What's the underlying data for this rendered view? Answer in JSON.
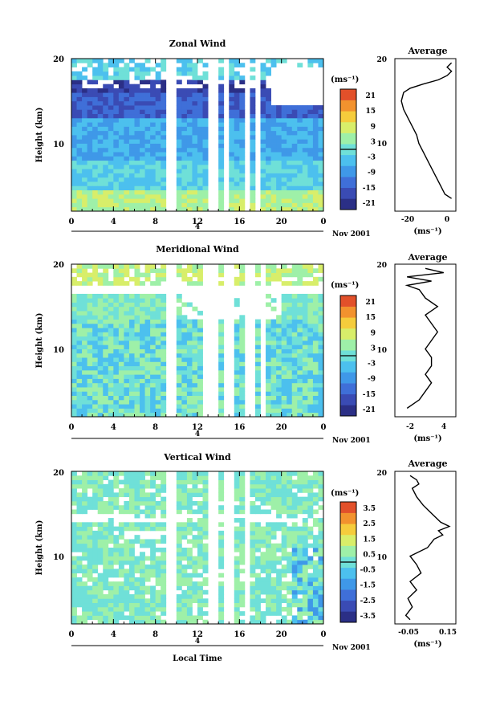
{
  "chart_data": [
    {
      "type": "heatmap",
      "title": "Zonal Wind",
      "ylabel": "Height (km)",
      "ylim": [
        2,
        20
      ],
      "yticks": [
        "20",
        "10"
      ],
      "xlim": [
        0,
        24
      ],
      "xticks": [
        "0",
        "4",
        "8",
        "12",
        "16",
        "20",
        "0"
      ],
      "date_label": "Nov 2001",
      "day_marker": "4",
      "colorbar_unit": "(ms⁻¹)",
      "colorbar_ticks": [
        "21",
        "15",
        "9",
        "3",
        "-3",
        "-9",
        "-15",
        "-21"
      ],
      "data_gaps_local_time": [
        [
          9.2,
          9.9
        ],
        [
          12.9,
          14.1
        ],
        [
          14.6,
          15.2
        ],
        [
          16.6,
          17.0
        ],
        [
          17.6,
          18.0
        ]
      ],
      "average": {
        "title": "Average",
        "xlabel": "(ms⁻¹)",
        "xticks": [
          "-20",
          "0"
        ],
        "xlim": [
          -25,
          3
        ],
        "yticks": [
          "20",
          "10"
        ],
        "profile": {
          "height": [
            3.5,
            4,
            5,
            6,
            7,
            8,
            9,
            10,
            11,
            12,
            13,
            14,
            15,
            16,
            16.5,
            17,
            17.5,
            18,
            18.5,
            19,
            19.5
          ],
          "value": [
            1,
            -2,
            -4,
            -6,
            -8,
            -10,
            -12,
            -14,
            -15,
            -17,
            -19,
            -21,
            -22,
            -21,
            -18,
            -12,
            -5,
            -1,
            1,
            -1,
            1
          ]
        }
      }
    },
    {
      "type": "heatmap",
      "title": "Meridional Wind",
      "ylabel": "Height (km)",
      "ylim": [
        2,
        20
      ],
      "yticks": [
        "20",
        "10"
      ],
      "xlim": [
        0,
        24
      ],
      "xticks": [
        "0",
        "4",
        "8",
        "12",
        "16",
        "20",
        "0"
      ],
      "date_label": "Nov 2001",
      "day_marker": "4",
      "colorbar_unit": "(ms⁻¹)",
      "colorbar_ticks": [
        "21",
        "15",
        "9",
        "3",
        "-3",
        "-9",
        "-15",
        "-21"
      ],
      "data_gaps_local_time": [
        [
          9.0,
          9.9
        ],
        [
          12.4,
          14.0
        ],
        [
          14.5,
          15.6
        ],
        [
          16.6,
          17.5
        ],
        [
          17.9,
          18.3
        ]
      ],
      "average": {
        "title": "Average",
        "xlabel": "(ms⁻¹)",
        "xticks": [
          "-2",
          "4"
        ],
        "xlim": [
          -4,
          6
        ],
        "yticks": [
          "20",
          "10"
        ],
        "profile": {
          "height": [
            3,
            4,
            5,
            6,
            7,
            8,
            9,
            10,
            11,
            12,
            13,
            14,
            15,
            16,
            17,
            17.5,
            18,
            18.5,
            19,
            19.5
          ],
          "value": [
            -2,
            0,
            1,
            2,
            1,
            2,
            2,
            1,
            2,
            3,
            2,
            1,
            3,
            1,
            0,
            -2,
            2,
            -2,
            4,
            1
          ]
        }
      }
    },
    {
      "type": "heatmap",
      "title": "Vertical Wind",
      "ylabel": "Height (km)",
      "xlabel": "Local Time",
      "ylim": [
        2,
        20
      ],
      "yticks": [
        "20",
        "10"
      ],
      "xlim": [
        0,
        24
      ],
      "xticks": [
        "0",
        "4",
        "8",
        "12",
        "16",
        "20",
        "0"
      ],
      "date_label": "Nov 2001",
      "day_marker": "4",
      "colorbar_unit": "(ms⁻¹)",
      "colorbar_ticks": [
        "3.5",
        "2.5",
        "1.5",
        "0.5",
        "-0.5",
        "-1.5",
        "-2.5",
        "-3.5"
      ],
      "data_gaps_local_time": [
        [
          9.0,
          9.9
        ],
        [
          13.1,
          14.0
        ],
        [
          14.6,
          15.7
        ],
        [
          16.7,
          17.2
        ]
      ],
      "average": {
        "title": "Average",
        "xlabel": "(ms⁻¹)",
        "xticks": [
          "-0.05",
          "0.15"
        ],
        "xlim": [
          -0.1,
          0.18
        ],
        "yticks": [
          "20",
          "10"
        ],
        "profile": {
          "height": [
            2.5,
            3,
            4,
            5,
            6,
            7,
            8,
            9,
            10,
            11,
            12,
            12.5,
            13,
            13.5,
            14,
            15,
            16,
            17,
            18,
            18.5,
            19,
            19.5
          ],
          "value": [
            -0.03,
            -0.05,
            -0.02,
            -0.04,
            0.0,
            -0.03,
            0.02,
            0.0,
            -0.03,
            0.05,
            0.08,
            0.12,
            0.1,
            0.15,
            0.11,
            0.07,
            0.03,
            0.0,
            -0.02,
            0.01,
            0.0,
            -0.03
          ]
        }
      }
    }
  ]
}
